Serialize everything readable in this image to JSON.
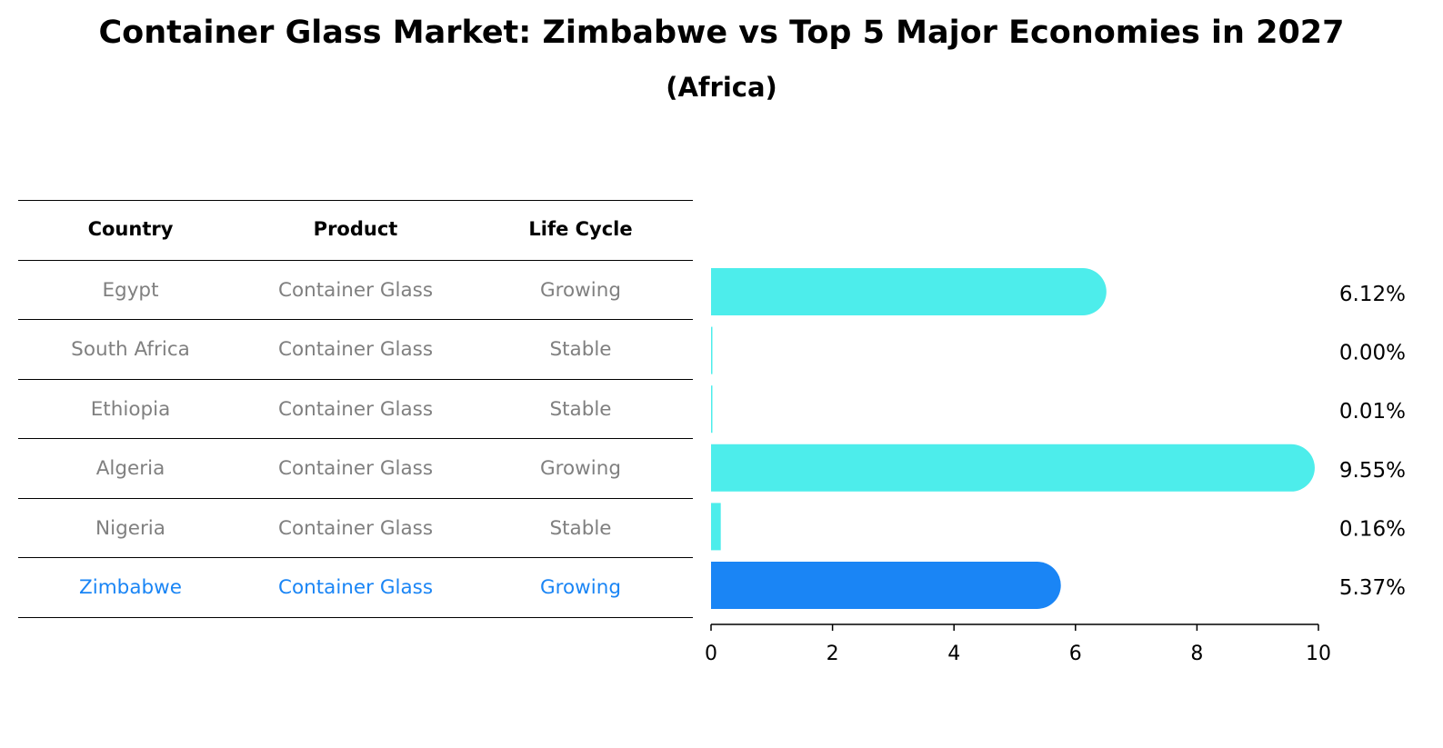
{
  "title": "Container Glass Market: Zimbabwe vs Top 5 Major Economies in 2027",
  "subtitle": "(Africa)",
  "table": {
    "headers": [
      "Country",
      "Product",
      "Life Cycle"
    ],
    "rows": [
      [
        "Egypt",
        "Container Glass",
        "Growing"
      ],
      [
        "South Africa",
        "Container Glass",
        "Stable"
      ],
      [
        "Ethiopia",
        "Container Glass",
        "Stable"
      ],
      [
        "Algeria",
        "Container Glass",
        "Growing"
      ],
      [
        "Nigeria",
        "Container Glass",
        "Stable"
      ],
      [
        "Zimbabwe",
        "Container Glass",
        "Growing"
      ]
    ],
    "highlight_row": 5
  },
  "colors": {
    "bar": "#4DEDEB",
    "highlight": "#1A85F5",
    "table_text": "#808080",
    "line": "#000000"
  },
  "chart_data": {
    "type": "bar",
    "orientation": "horizontal",
    "categories": [
      "Egypt",
      "South Africa",
      "Ethiopia",
      "Algeria",
      "Nigeria",
      "Zimbabwe"
    ],
    "values": [
      6.12,
      0.0,
      0.01,
      9.55,
      0.16,
      5.37
    ],
    "labels": [
      "6.12%",
      "0.00%",
      "0.01%",
      "9.55%",
      "0.16%",
      "5.37%"
    ],
    "xlim": [
      0,
      10
    ],
    "xticks": [
      "0",
      "2",
      "4",
      "6",
      "8",
      "10"
    ],
    "grid": false,
    "highlight_category": "Zimbabwe"
  }
}
